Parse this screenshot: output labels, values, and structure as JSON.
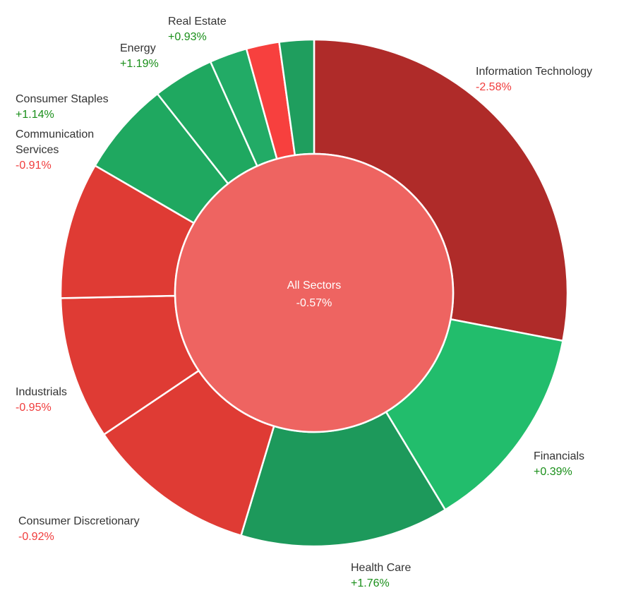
{
  "chart_data": {
    "type": "sunburst",
    "center": {
      "name": "All Sectors",
      "change": "-0.57%",
      "color": "#ee6461"
    },
    "sectors": [
      {
        "name": "Information Technology",
        "change": "-2.58%",
        "weight": 28.0,
        "color": "#af2b29",
        "direction": "down"
      },
      {
        "name": "Financials",
        "change": "+0.39%",
        "weight": 13.3,
        "color": "#22bd6c",
        "direction": "up"
      },
      {
        "name": "Health Care",
        "change": "+1.76%",
        "weight": 13.3,
        "color": "#1d995b",
        "direction": "up"
      },
      {
        "name": "Consumer Discretionary",
        "change": "-0.92%",
        "weight": 10.9,
        "color": "#df3b34",
        "direction": "down"
      },
      {
        "name": "Industrials",
        "change": "-0.95%",
        "weight": 9.1,
        "color": "#df3b34",
        "direction": "down"
      },
      {
        "name": "Communication Services",
        "change": "-0.91%",
        "weight": 8.7,
        "color": "#df3b34",
        "direction": "down"
      },
      {
        "name": "Consumer Staples",
        "change": "+1.14%",
        "weight": 6.0,
        "color": "#1fa860",
        "direction": "up"
      },
      {
        "name": "Energy",
        "change": "+1.19%",
        "weight": 3.9,
        "color": "#1fa860",
        "direction": "up"
      },
      {
        "name": "Real Estate",
        "change": "+0.93%",
        "weight": 2.4,
        "color": "#22ab66",
        "direction": "up"
      },
      {
        "name": "",
        "change": "",
        "weight": 2.1,
        "color": "#f7403e",
        "direction": "down"
      },
      {
        "name": "",
        "change": "",
        "weight": 2.2,
        "color": "#1f9e5e",
        "direction": "up"
      }
    ],
    "value_colors": {
      "up": "#1a8f1a",
      "down": "#f03c3c"
    },
    "legend": "none"
  }
}
